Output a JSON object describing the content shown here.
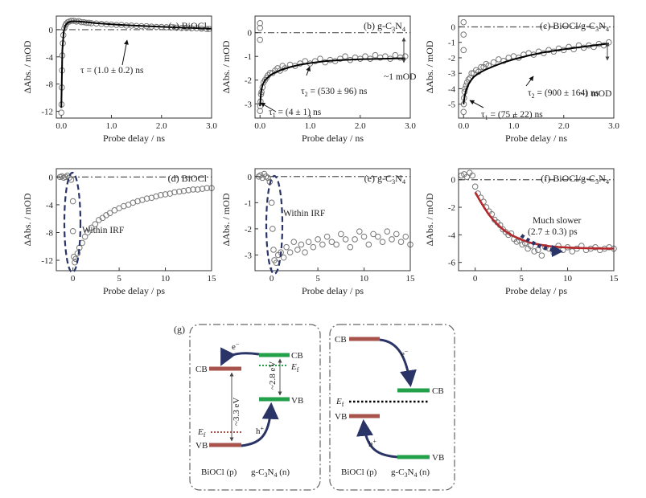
{
  "colors": {
    "axis": "#333333",
    "marker": "#777777",
    "fit_black": "#000000",
    "fit_red": "#b5282c",
    "dashdot": "#555555",
    "ellipse": "#2a3466",
    "arrow": "#2a3466",
    "bioc_level": "#a8544c",
    "gcn_level": "#22a04a",
    "fermi_gcn": "#22a04a",
    "fermi_bioc": "#a8544c"
  },
  "chart_data": [
    {
      "type": "scatter",
      "panel_label": "(a) BiOCl",
      "xlabel": "Probe delay / ns",
      "ylabel": "ΔAbs. / mOD",
      "xlim": [
        -0.1,
        3.0
      ],
      "ylim": [
        -13,
        2
      ],
      "xticks": [
        0.0,
        1.0,
        2.0,
        3.0
      ],
      "xtick_labels": [
        "0.0",
        "1.0",
        "2.0",
        "3.0"
      ],
      "yticks": [
        -12,
        -8,
        -4,
        0
      ],
      "ytick_labels": [
        "-12",
        "-8",
        "-4",
        "0"
      ],
      "zero_line": true,
      "series": [
        {
          "kind": "points",
          "x": [
            0.0,
            0.005,
            0.01,
            0.015,
            0.02,
            0.03,
            0.04,
            0.06,
            0.08,
            0.1,
            0.13,
            0.16,
            0.2,
            0.25,
            0.3,
            0.35,
            0.4,
            0.45,
            0.5,
            0.55,
            0.6,
            0.7,
            0.8,
            0.9,
            1.0,
            1.1,
            1.2,
            1.3,
            1.4,
            1.5,
            1.6,
            1.7,
            1.8,
            1.9,
            2.0,
            2.1,
            2.2,
            2.3,
            2.4,
            2.5,
            2.6,
            2.7,
            2.8,
            2.9,
            2.95
          ],
          "y": [
            -12.2,
            -11.0,
            -8.5,
            -6.0,
            -3.8,
            -2.0,
            -0.8,
            0.2,
            0.6,
            0.9,
            1.1,
            1.2,
            1.3,
            1.3,
            1.2,
            1.25,
            1.1,
            1.1,
            1.0,
            1.0,
            0.95,
            0.9,
            0.85,
            0.8,
            0.75,
            0.7,
            0.7,
            0.6,
            0.6,
            0.55,
            0.5,
            0.5,
            0.45,
            0.4,
            0.4,
            0.35,
            0.35,
            0.3,
            0.25,
            0.25,
            0.2,
            0.2,
            0.15,
            0.1,
            0.1
          ]
        },
        {
          "kind": "fit",
          "x": [
            0.0,
            0.02,
            0.05,
            0.08,
            0.12,
            0.18,
            0.25,
            0.35,
            0.5,
            0.7,
            1.0,
            1.3,
            1.6,
            2.0,
            2.4,
            2.8,
            3.0
          ],
          "y": [
            -11.5,
            -3.0,
            -0.2,
            0.6,
            1.0,
            1.2,
            1.25,
            1.2,
            1.1,
            0.95,
            0.8,
            0.65,
            0.55,
            0.42,
            0.3,
            0.2,
            0.15
          ]
        }
      ],
      "annotations": [
        "τ = (1.0 ± 0.2) ns"
      ]
    },
    {
      "type": "scatter",
      "panel_label": "(b) g-C3N4",
      "xlabel": "Probe delay / ns",
      "ylabel": "ΔAbs. / mOD",
      "xlim": [
        -0.1,
        3.0
      ],
      "ylim": [
        -3.6,
        0.7
      ],
      "xticks": [
        0.0,
        1.0,
        2.0,
        3.0
      ],
      "xtick_labels": [
        "0.0",
        "1.0",
        "2.0",
        "3.0"
      ],
      "yticks": [
        -3,
        -2,
        -1,
        0
      ],
      "ytick_labels": [
        "-3",
        "-2",
        "-1",
        "0"
      ],
      "zero_line": true,
      "series": [
        {
          "kind": "points",
          "x": [
            0.0,
            0.0,
            0.0,
            0.0,
            0.005,
            0.01,
            0.02,
            0.03,
            0.05,
            0.07,
            0.1,
            0.13,
            0.16,
            0.2,
            0.25,
            0.3,
            0.35,
            0.4,
            0.45,
            0.5,
            0.6,
            0.7,
            0.8,
            0.9,
            1.0,
            1.1,
            1.2,
            1.3,
            1.4,
            1.5,
            1.6,
            1.7,
            1.8,
            1.9,
            2.0,
            2.1,
            2.2,
            2.3,
            2.4,
            2.5,
            2.6,
            2.7,
            2.8,
            2.9
          ],
          "y": [
            0.4,
            0.2,
            -0.3,
            -3.3,
            -3.1,
            -2.9,
            -2.6,
            -2.5,
            -2.3,
            -2.1,
            -2.0,
            -1.9,
            -1.8,
            -1.7,
            -1.7,
            -1.6,
            -1.5,
            -1.6,
            -1.4,
            -1.5,
            -1.35,
            -1.4,
            -1.3,
            -1.2,
            -1.3,
            -1.2,
            -1.1,
            -1.25,
            -1.15,
            -1.2,
            -1.1,
            -1.0,
            -1.15,
            -1.05,
            -1.1,
            -1.0,
            -1.1,
            -0.95,
            -1.05,
            -1.0,
            -1.1,
            -0.95,
            -1.05,
            -1.0
          ]
        },
        {
          "kind": "fit",
          "x": [
            0.0,
            0.02,
            0.05,
            0.1,
            0.15,
            0.2,
            0.3,
            0.45,
            0.6,
            0.8,
            1.0,
            1.3,
            1.6,
            2.0,
            2.4,
            2.8,
            2.9
          ],
          "y": [
            -3.1,
            -2.5,
            -2.2,
            -2.0,
            -1.9,
            -1.8,
            -1.68,
            -1.55,
            -1.45,
            -1.35,
            -1.28,
            -1.2,
            -1.16,
            -1.12,
            -1.1,
            -1.08,
            -1.08
          ]
        }
      ],
      "annotations": [
        "τ2 = (530 ± 96) ns",
        "τ1 = (4 ± 1) ns",
        "~1 mOD"
      ]
    },
    {
      "type": "scatter",
      "panel_label": "(c) BiOCl/g-C3N4",
      "xlabel": "Probe delay / ns",
      "ylabel": "ΔAbs. / mOD",
      "xlim": [
        -0.1,
        3.0
      ],
      "ylim": [
        -5.9,
        0.7
      ],
      "xticks": [
        0.0,
        1.0,
        2.0,
        3.0
      ],
      "xtick_labels": [
        "0.0",
        "1.0",
        "2.0",
        "3.0"
      ],
      "yticks": [
        -5,
        -4,
        -3,
        -2,
        -1,
        0
      ],
      "ytick_labels": [
        "-5",
        "-4",
        "-3",
        "-2",
        "-1",
        "0"
      ],
      "zero_line": true,
      "series": [
        {
          "kind": "points",
          "x": [
            0.0,
            0.0,
            0.0,
            0.0,
            0.005,
            0.01,
            0.02,
            0.03,
            0.05,
            0.07,
            0.1,
            0.13,
            0.16,
            0.2,
            0.25,
            0.3,
            0.35,
            0.4,
            0.45,
            0.5,
            0.6,
            0.7,
            0.8,
            0.9,
            1.0,
            1.1,
            1.2,
            1.3,
            1.4,
            1.5,
            1.6,
            1.7,
            1.8,
            1.9,
            2.0,
            2.1,
            2.2,
            2.3,
            2.4,
            2.5,
            2.6,
            2.7,
            2.8,
            2.9
          ],
          "y": [
            0.3,
            -0.5,
            -1.5,
            -5.5,
            -5.0,
            -4.6,
            -4.2,
            -4.0,
            -3.8,
            -3.6,
            -3.4,
            -3.3,
            -3.0,
            -3.0,
            -2.8,
            -2.9,
            -2.6,
            -2.6,
            -2.4,
            -2.5,
            -2.3,
            -2.1,
            -2.2,
            -2.0,
            -1.9,
            -2.0,
            -1.8,
            -1.7,
            -1.8,
            -1.6,
            -1.7,
            -1.5,
            -1.6,
            -1.4,
            -1.5,
            -1.3,
            -1.45,
            -1.2,
            -1.35,
            -1.2,
            -1.3,
            -1.1,
            -1.2,
            -1.0
          ]
        },
        {
          "kind": "fit",
          "x": [
            0.0,
            0.02,
            0.05,
            0.1,
            0.15,
            0.2,
            0.3,
            0.45,
            0.6,
            0.8,
            1.0,
            1.3,
            1.6,
            2.0,
            2.4,
            2.8,
            2.9
          ],
          "y": [
            -5.0,
            -4.5,
            -4.1,
            -3.7,
            -3.45,
            -3.25,
            -3.0,
            -2.75,
            -2.55,
            -2.3,
            -2.1,
            -1.85,
            -1.65,
            -1.45,
            -1.28,
            -1.12,
            -1.08
          ]
        }
      ],
      "annotations": [
        "τ2 = (900 ± 164) ns",
        "τ1 = (75 ± 22) ns",
        "~1 mOD"
      ]
    },
    {
      "type": "scatter",
      "panel_label": "(d) BiOCl",
      "xlabel": "Probe delay / ps",
      "ylabel": "ΔAbs. / mOD",
      "xlim": [
        -1.8,
        15
      ],
      "ylim": [
        -13.5,
        1.2
      ],
      "xticks": [
        0,
        5,
        10,
        15
      ],
      "xtick_labels": [
        "0",
        "5",
        "10",
        "15"
      ],
      "yticks": [
        -12,
        -8,
        -4,
        0
      ],
      "ytick_labels": [
        "-12",
        "-8",
        "-4",
        "0"
      ],
      "zero_line": true,
      "series": [
        {
          "kind": "points",
          "x": [
            -1.4,
            -1.2,
            -1.0,
            -0.8,
            -0.6,
            -0.4,
            -0.2,
            0.0,
            0.0,
            0.1,
            0.2,
            0.3,
            0.5,
            0.7,
            1.0,
            1.3,
            1.6,
            2.0,
            2.4,
            2.8,
            3.2,
            3.6,
            4.0,
            4.5,
            5.0,
            5.5,
            6.0,
            6.5,
            7.0,
            7.5,
            8.0,
            8.5,
            9.0,
            9.5,
            10.0,
            10.5,
            11.0,
            11.5,
            12.0,
            12.5,
            13.0,
            13.5,
            14.0,
            14.5,
            15.0
          ],
          "y": [
            0.0,
            0.1,
            -0.1,
            0.0,
            0.2,
            -0.1,
            -0.4,
            -3.5,
            -7.8,
            -11.5,
            -12.3,
            -11.8,
            -11.0,
            -10.2,
            -9.5,
            -8.6,
            -8.0,
            -7.3,
            -6.8,
            -6.2,
            -5.9,
            -5.5,
            -5.2,
            -4.8,
            -4.5,
            -4.2,
            -4.0,
            -3.7,
            -3.5,
            -3.3,
            -3.1,
            -3.0,
            -2.8,
            -2.6,
            -2.5,
            -2.4,
            -2.2,
            -2.1,
            -2.0,
            -1.9,
            -1.8,
            -1.8,
            -1.7,
            -1.6,
            -1.6
          ]
        }
      ],
      "annotations": [
        "Within IRF"
      ]
    },
    {
      "type": "scatter",
      "panel_label": "(e) g-C3N4",
      "xlabel": "Probe delay / ps",
      "ylabel": "ΔAbs. / mOD",
      "xlim": [
        -1.8,
        15
      ],
      "ylim": [
        -3.6,
        0.3
      ],
      "xticks": [
        0,
        5,
        10,
        15
      ],
      "xtick_labels": [
        "0",
        "5",
        "10",
        "15"
      ],
      "yticks": [
        -3,
        -2,
        -1,
        0
      ],
      "ytick_labels": [
        "-3",
        "-2",
        "-1",
        "0"
      ],
      "zero_line": true,
      "series": [
        {
          "kind": "points",
          "x": [
            -1.4,
            -1.2,
            -1.0,
            -0.8,
            -0.6,
            -0.4,
            -0.2,
            0.0,
            0.1,
            0.2,
            0.3,
            0.5,
            0.7,
            1.0,
            1.3,
            1.6,
            2.0,
            2.4,
            2.8,
            3.2,
            3.6,
            4.0,
            4.5,
            5.0,
            5.5,
            6.0,
            6.5,
            7.0,
            7.5,
            8.0,
            8.5,
            9.0,
            9.5,
            10.0,
            10.5,
            11.0,
            11.5,
            12.0,
            12.5,
            13.0,
            13.5,
            14.0,
            14.5,
            15.0
          ],
          "y": [
            0.0,
            0.05,
            -0.05,
            0.1,
            0.0,
            -0.05,
            -0.2,
            -1.0,
            -2.0,
            -2.8,
            -3.2,
            -3.3,
            -3.0,
            -2.9,
            -3.1,
            -2.7,
            -2.9,
            -2.5,
            -2.8,
            -2.6,
            -2.9,
            -2.5,
            -2.7,
            -2.4,
            -2.6,
            -2.3,
            -2.5,
            -2.6,
            -2.2,
            -2.4,
            -2.7,
            -2.4,
            -2.1,
            -2.3,
            -2.6,
            -2.2,
            -2.3,
            -2.5,
            -2.1,
            -2.4,
            -2.2,
            -2.5,
            -2.3,
            -2.6
          ]
        }
      ],
      "annotations": [
        "Within IRF"
      ]
    },
    {
      "type": "scatter",
      "panel_label": "(f) BiOCl/g-C3N4",
      "xlabel": "Probe delay / ps",
      "ylabel": "ΔAbs. / mOD",
      "xlim": [
        -1.8,
        15
      ],
      "ylim": [
        -6.6,
        0.8
      ],
      "xticks": [
        0,
        5,
        10,
        15
      ],
      "xtick_labels": [
        "0",
        "5",
        "10",
        "15"
      ],
      "yticks": [
        -6,
        -4,
        -2,
        0
      ],
      "ytick_labels": [
        "-6",
        "-4",
        "-2",
        "0"
      ],
      "zero_line": true,
      "series": [
        {
          "kind": "points",
          "x": [
            -1.5,
            -1.2,
            -0.9,
            -0.6,
            -0.3,
            0.0,
            0.3,
            0.6,
            0.9,
            1.2,
            1.5,
            1.8,
            2.1,
            2.4,
            2.7,
            3.0,
            3.3,
            3.6,
            3.9,
            4.2,
            4.5,
            4.8,
            5.1,
            5.4,
            5.7,
            6.0,
            6.4,
            6.8,
            7.2,
            7.6,
            8.0,
            8.5,
            9.0,
            9.5,
            10.0,
            10.5,
            11.0,
            11.5,
            12.0,
            12.5,
            13.0,
            13.5,
            14.0,
            14.5,
            15.0
          ],
          "y": [
            0.3,
            0.4,
            0.2,
            0.5,
            0.3,
            -0.5,
            -1.0,
            -1.3,
            -1.6,
            -2.0,
            -2.3,
            -2.5,
            -2.9,
            -3.1,
            -3.3,
            -3.6,
            -3.8,
            -4.0,
            -3.9,
            -4.3,
            -4.5,
            -4.4,
            -4.7,
            -4.6,
            -5.0,
            -4.8,
            -5.2,
            -5.1,
            -5.5,
            -4.9,
            -5.0,
            -5.3,
            -4.8,
            -5.1,
            -4.9,
            -5.2,
            -5.0,
            -4.8,
            -5.1,
            -5.0,
            -4.9,
            -5.1,
            -5.0,
            -4.9,
            -5.0
          ]
        },
        {
          "kind": "fit",
          "x": [
            0.0,
            0.5,
            1.0,
            1.5,
            2.0,
            2.5,
            3.0,
            3.5,
            4.0,
            4.5,
            5.0,
            6.0,
            7.0,
            8.0,
            9.0,
            10.0,
            11.0,
            12.0,
            13.0,
            14.0,
            15.0
          ],
          "y": [
            -0.9,
            -1.5,
            -2.05,
            -2.55,
            -2.95,
            -3.3,
            -3.6,
            -3.85,
            -4.05,
            -4.2,
            -4.35,
            -4.58,
            -4.72,
            -4.82,
            -4.88,
            -4.92,
            -4.95,
            -4.97,
            -4.98,
            -4.99,
            -5.0
          ]
        }
      ],
      "annotations": [
        "Much slower",
        "(2.7 ± 0.3) ps"
      ]
    }
  ],
  "diagram": {
    "panel_label": "(g)",
    "left": {
      "cb_bioc": "CB",
      "vb_bioc": "VB",
      "cb_gcn": "CB",
      "vb_gcn": "VB",
      "ef_bioc": "E",
      "ef_bioc_sub": "f",
      "ef_gcn": "E",
      "ef_gcn_sub": "f",
      "electron": "e",
      "electron_sup": "−",
      "hole": "h",
      "hole_sup": "+",
      "gap_bioc": "~3.3 eV",
      "gap_gcn": "~2.8 eV",
      "label_bioc": "BiOCl (p)",
      "label_gcn": "g-C3N4 (n)"
    },
    "right": {
      "cb_bioc": "CB",
      "vb_bioc": "VB",
      "cb_gcn": "CB",
      "vb_gcn": "VB",
      "ef": "E",
      "ef_sub": "f",
      "electron": "e",
      "electron_sup": "−",
      "hole": "h",
      "hole_sup": "+",
      "label_bioc": "BiOCl (p)",
      "label_gcn": "g-C3N4 (n)"
    }
  }
}
